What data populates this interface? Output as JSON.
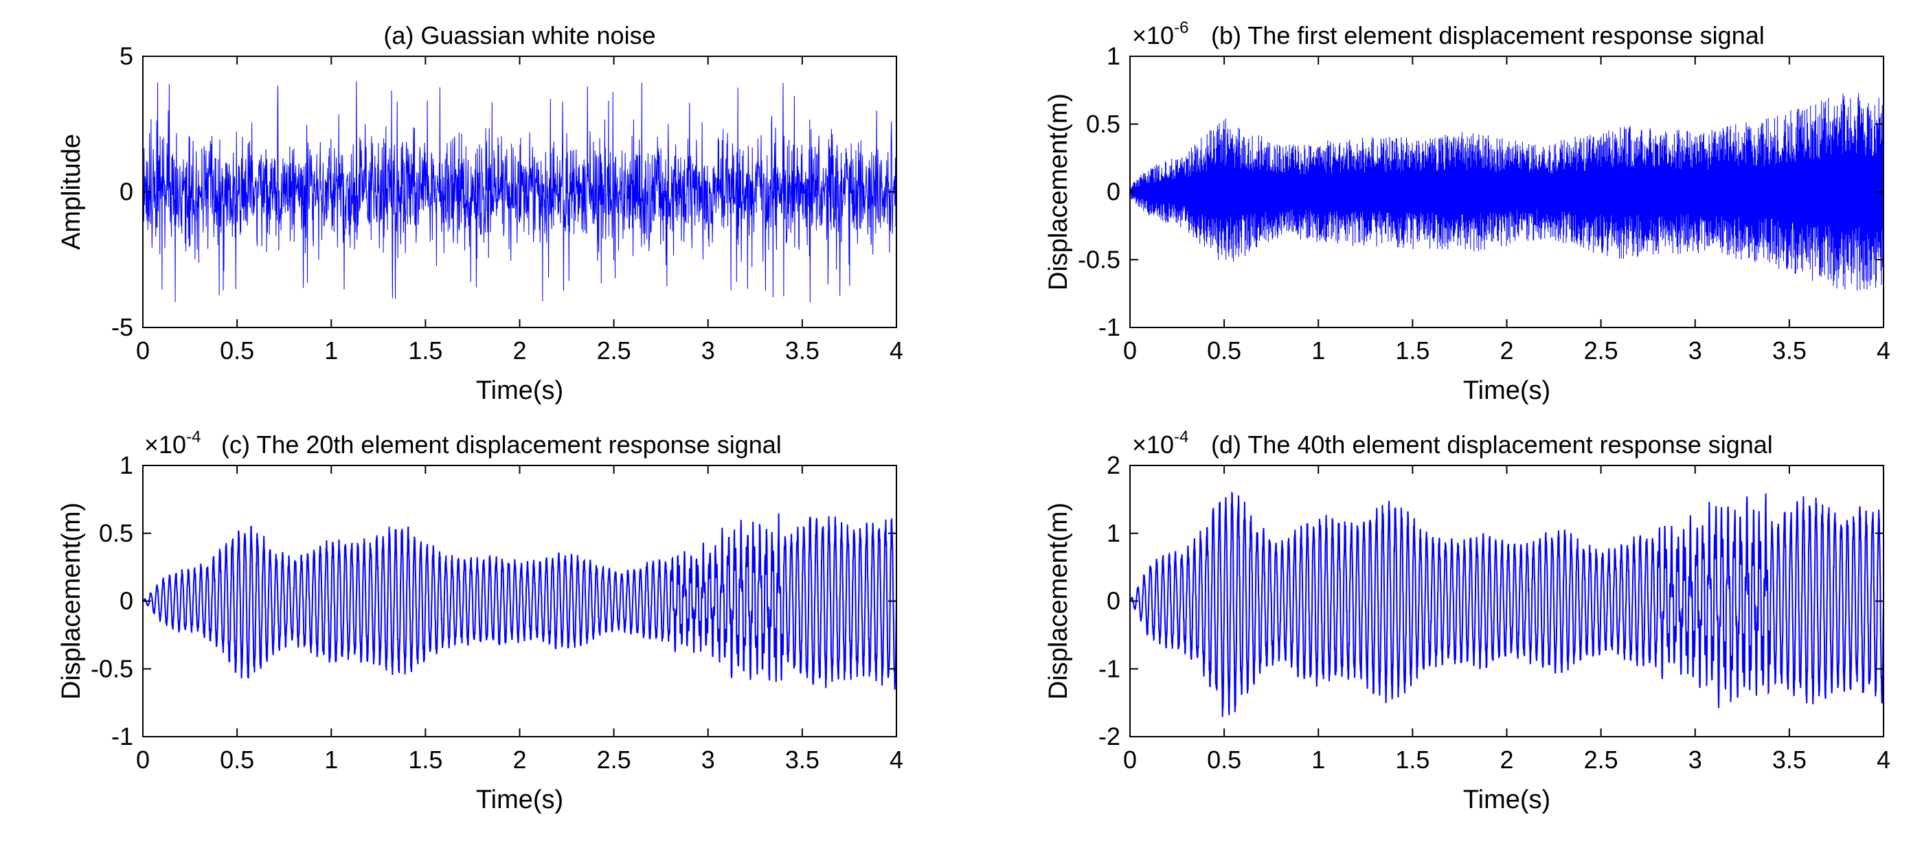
{
  "figure": {
    "background": "#ffffff",
    "line_color": "#0000ff",
    "axis_color": "#000000"
  },
  "chart_data": [
    {
      "id": "a",
      "type": "line",
      "title": "(a) Guassian white noise",
      "xlabel": "Time(s)",
      "ylabel": "Amplitude",
      "sci_exponent": null,
      "xlim": [
        0,
        4
      ],
      "ylim": [
        -5,
        5
      ],
      "xticks": [
        0,
        0.5,
        1,
        1.5,
        2,
        2.5,
        3,
        3.5,
        4
      ],
      "xtick_labels": [
        "0",
        "0.5",
        "1",
        "1.5",
        "2",
        "2.5",
        "3",
        "3.5",
        "4"
      ],
      "yticks": [
        -5,
        0,
        5
      ],
      "ytick_labels": [
        "-5",
        "0",
        "5"
      ],
      "signal": {
        "kind": "noise",
        "envelope": [
          [
            0,
            2.4
          ],
          [
            4,
            2.4
          ]
        ],
        "peak": 4.1
      }
    },
    {
      "id": "b",
      "type": "line",
      "title": "(b) The first element displacement response signal",
      "xlabel": "Time(s)",
      "ylabel": "Displacement(m)",
      "sci_exponent": "-6",
      "xlim": [
        0,
        4
      ],
      "ylim": [
        -1,
        1
      ],
      "xticks": [
        0,
        0.5,
        1,
        1.5,
        2,
        2.5,
        3,
        3.5,
        4
      ],
      "xtick_labels": [
        "0",
        "0.5",
        "1",
        "1.5",
        "2",
        "2.5",
        "3",
        "3.5",
        "4"
      ],
      "yticks": [
        -1,
        -0.5,
        0,
        0.5,
        1
      ],
      "ytick_labels": [
        "-1",
        "-0.5",
        "0",
        "0.5",
        "1"
      ],
      "signal": {
        "kind": "dense",
        "envelope": [
          [
            0,
            0.05
          ],
          [
            0.1,
            0.18
          ],
          [
            0.3,
            0.3
          ],
          [
            0.5,
            0.55
          ],
          [
            0.8,
            0.35
          ],
          [
            1.2,
            0.4
          ],
          [
            1.8,
            0.45
          ],
          [
            2.2,
            0.35
          ],
          [
            2.6,
            0.5
          ],
          [
            3.0,
            0.45
          ],
          [
            3.4,
            0.55
          ],
          [
            3.8,
            0.75
          ],
          [
            4,
            0.7
          ]
        ]
      }
    },
    {
      "id": "c",
      "type": "line",
      "title": "(c) The 20th element displacement response signal",
      "xlabel": "Time(s)",
      "ylabel": "Displacement(m)",
      "sci_exponent": "-4",
      "xlim": [
        0,
        4
      ],
      "ylim": [
        -1,
        1
      ],
      "xticks": [
        0,
        0.5,
        1,
        1.5,
        2,
        2.5,
        3,
        3.5,
        4
      ],
      "xtick_labels": [
        "0",
        "0.5",
        "1",
        "1.5",
        "2",
        "2.5",
        "3",
        "3.5",
        "4"
      ],
      "yticks": [
        -1,
        -0.5,
        0,
        0.5,
        1
      ],
      "ytick_labels": [
        "-1",
        "-0.5",
        "0",
        "0.5",
        "1"
      ],
      "signal": {
        "kind": "oscillation",
        "cycles_per_second": 30,
        "envelope": [
          [
            0,
            0.0
          ],
          [
            0.1,
            0.15
          ],
          [
            0.3,
            0.3
          ],
          [
            0.55,
            0.55
          ],
          [
            0.8,
            0.35
          ],
          [
            1.3,
            0.55
          ],
          [
            1.8,
            0.3
          ],
          [
            2.2,
            0.35
          ],
          [
            2.6,
            0.25
          ],
          [
            3.0,
            0.35
          ],
          [
            3.4,
            0.55
          ],
          [
            3.8,
            0.65
          ],
          [
            4,
            0.6
          ]
        ]
      }
    },
    {
      "id": "d",
      "type": "line",
      "title": "(d) The 40th element displacement response signal",
      "xlabel": "Time(s)",
      "ylabel": "Displacement(m)",
      "sci_exponent": "-4",
      "xlim": [
        0,
        4
      ],
      "ylim": [
        -2,
        2
      ],
      "xticks": [
        0,
        0.5,
        1,
        1.5,
        2,
        2.5,
        3,
        3.5,
        4
      ],
      "xtick_labels": [
        "0",
        "0.5",
        "1",
        "1.5",
        "2",
        "2.5",
        "3",
        "3.5",
        "4"
      ],
      "yticks": [
        -2,
        -1,
        0,
        1,
        2
      ],
      "ytick_labels": [
        "-2",
        "-1",
        "0",
        "1",
        "2"
      ],
      "signal": {
        "kind": "oscillation",
        "cycles_per_second": 30,
        "envelope": [
          [
            0,
            0.0
          ],
          [
            0.1,
            0.5
          ],
          [
            0.3,
            0.9
          ],
          [
            0.5,
            1.6
          ],
          [
            0.8,
            1.0
          ],
          [
            1.3,
            1.45
          ],
          [
            1.8,
            0.9
          ],
          [
            2.2,
            1.0
          ],
          [
            2.6,
            0.85
          ],
          [
            3.0,
            1.0
          ],
          [
            3.4,
            1.3
          ],
          [
            3.8,
            1.5
          ],
          [
            4,
            1.4
          ]
        ]
      }
    }
  ]
}
